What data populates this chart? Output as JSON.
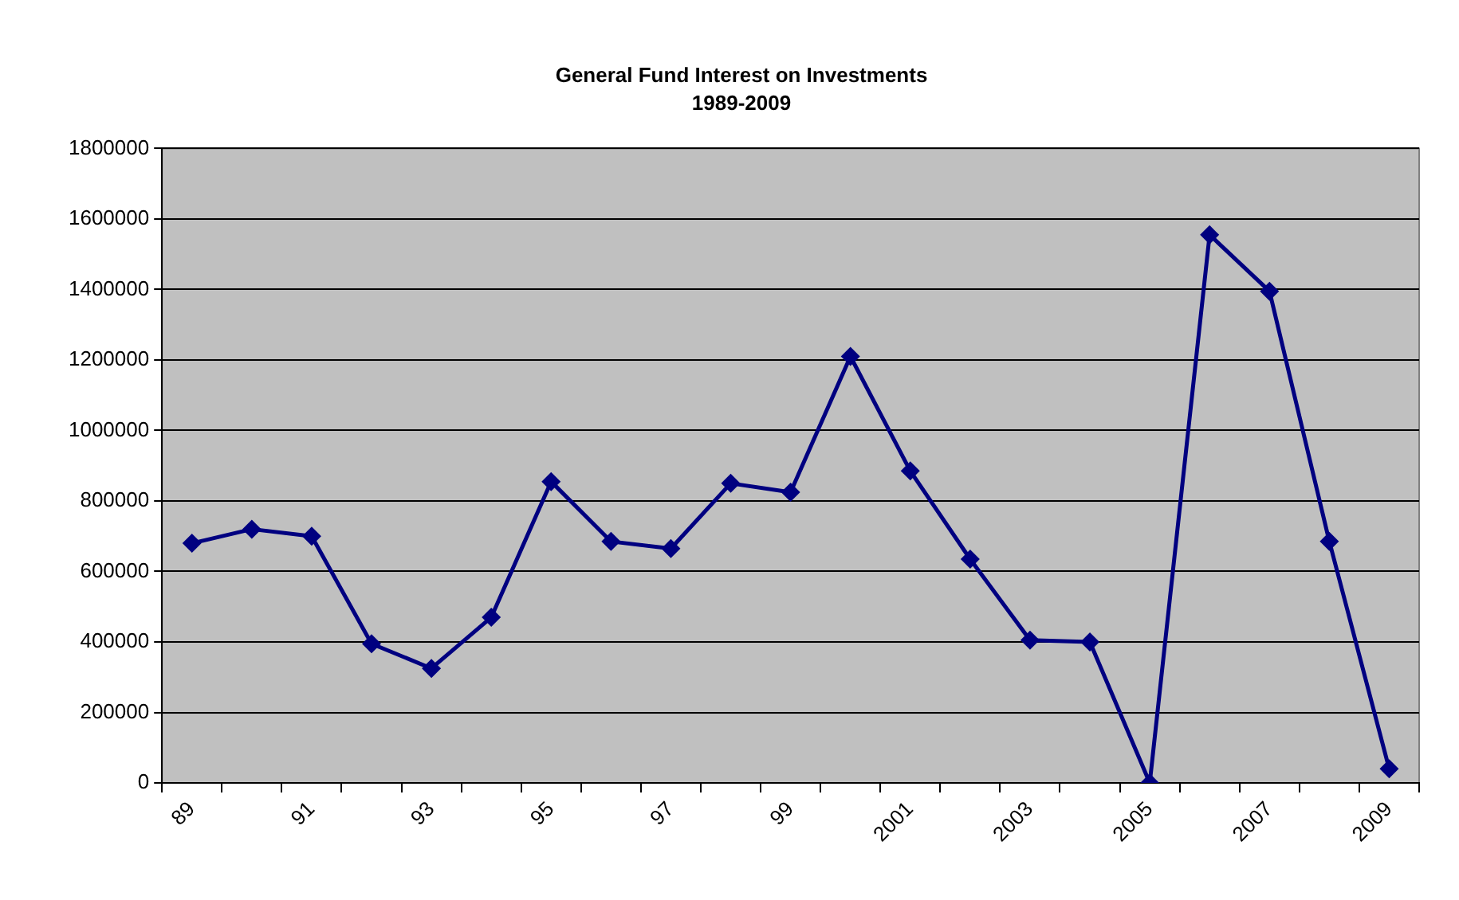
{
  "chart_data": {
    "type": "line",
    "title": "General Fund Interest on Investments",
    "subtitle": "1989-2009",
    "categories": [
      "89",
      null,
      "91",
      null,
      "93",
      null,
      "95",
      null,
      "97",
      null,
      "99",
      null,
      "2001",
      null,
      "2003",
      null,
      "2005",
      null,
      "2007",
      null,
      "2009"
    ],
    "series": [
      {
        "color": "#000080",
        "values": [
          680000,
          720000,
          700000,
          395000,
          325000,
          470000,
          855000,
          685000,
          665000,
          850000,
          825000,
          1210000,
          885000,
          635000,
          405000,
          400000,
          0,
          1555000,
          1395000,
          685000,
          40000
        ]
      }
    ],
    "ylim": [
      0,
      1800000
    ],
    "yticks": [
      0,
      200000,
      400000,
      600000,
      800000,
      1000000,
      1200000,
      1400000,
      1600000,
      1800000
    ],
    "grid": "y",
    "legend": false,
    "marker": "diamond",
    "line_style": "solid"
  }
}
